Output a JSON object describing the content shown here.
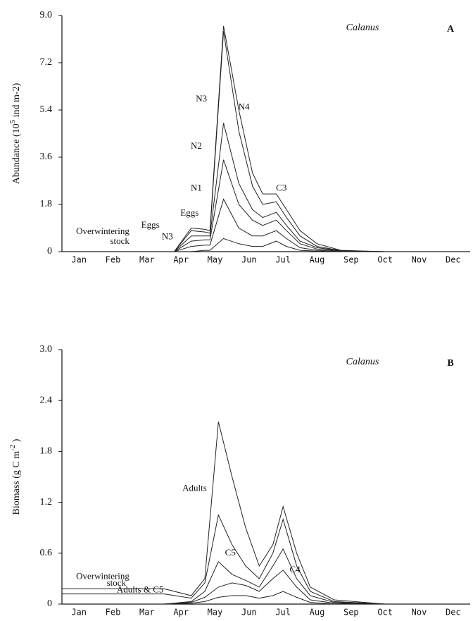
{
  "chart_data": [
    {
      "type": "line",
      "title": "Calanus",
      "panel": "A",
      "ylabel": [
        "Abundance (10",
        "5",
        " ind m-2)"
      ],
      "xlim": [
        0,
        12
      ],
      "ylim": [
        0,
        9
      ],
      "xticks": [
        {
          "value": 0.5,
          "label": "Jan"
        },
        {
          "value": 1.5,
          "label": "Feb"
        },
        {
          "value": 2.5,
          "label": "Mar"
        },
        {
          "value": 3.5,
          "label": "Apr"
        },
        {
          "value": 4.5,
          "label": "May"
        },
        {
          "value": 5.5,
          "label": "Jun"
        },
        {
          "value": 6.5,
          "label": "Jul"
        },
        {
          "value": 7.5,
          "label": "Aug"
        },
        {
          "value": 8.5,
          "label": "Sep"
        },
        {
          "value": 9.5,
          "label": "Oct"
        },
        {
          "value": 10.5,
          "label": "Nov"
        },
        {
          "value": 11.5,
          "label": "Dec"
        }
      ],
      "yticks": [
        0,
        1.8,
        3.6,
        5.4,
        7.2,
        {
          "value": 9,
          "label": "9.0"
        }
      ],
      "x": [
        0,
        3.3,
        3.8,
        4.2,
        4.35,
        4.75,
        5.2,
        5.6,
        5.9,
        6.3,
        6.6,
        7.0,
        7.5,
        8.2,
        9.5,
        12
      ],
      "series": [
        {
          "color": "#222222",
          "values": [
            0,
            0,
            0.9,
            0.85,
            0.8,
            8.6,
            5.4,
            3.0,
            2.2,
            2.2,
            1.6,
            0.8,
            0.3,
            0.05,
            0,
            0
          ]
        },
        {
          "color": "#222222",
          "values": [
            0,
            0,
            0.8,
            0.75,
            0.7,
            8.4,
            4.6,
            2.5,
            1.8,
            1.9,
            1.3,
            0.6,
            0.2,
            0.04,
            0,
            0
          ]
        },
        {
          "color": "#222222",
          "values": [
            0,
            0,
            0.6,
            0.6,
            0.6,
            4.9,
            2.6,
            1.6,
            1.3,
            1.5,
            1.0,
            0.4,
            0.15,
            0.03,
            0,
            0
          ]
        },
        {
          "color": "#222222",
          "values": [
            0,
            0,
            0.4,
            0.45,
            0.45,
            3.5,
            1.8,
            1.2,
            1.0,
            1.2,
            0.8,
            0.3,
            0.1,
            0.02,
            0,
            0
          ]
        },
        {
          "color": "#222222",
          "values": [
            0,
            0,
            0.2,
            0.25,
            0.25,
            2.0,
            0.9,
            0.6,
            0.6,
            0.8,
            0.5,
            0.15,
            0.05,
            0.01,
            0,
            0
          ]
        },
        {
          "color": "#222222",
          "values": [
            0,
            0,
            0,
            0.05,
            0.05,
            0.5,
            0.3,
            0.2,
            0.2,
            0.4,
            0.2,
            0.05,
            0.02,
            0,
            0,
            0
          ]
        }
      ],
      "annotations": [
        {
          "text": "N3",
          "x": 4.1,
          "y": 5.8
        },
        {
          "text": "N4",
          "x": 5.35,
          "y": 5.5
        },
        {
          "text": "N2",
          "x": 3.95,
          "y": 4.0
        },
        {
          "text": "N1",
          "x": 3.95,
          "y": 2.4
        },
        {
          "text": "Eggs",
          "x": 3.75,
          "y": 1.45
        },
        {
          "text": "Eggs",
          "x": 2.6,
          "y": 1.0
        },
        {
          "text": "N3",
          "x": 3.1,
          "y": 0.55
        },
        {
          "text": "C3",
          "x": 6.45,
          "y": 2.4
        },
        {
          "text": "Overwintering",
          "x": 1.2,
          "y": 0.75
        },
        {
          "text": "stock",
          "x": 1.7,
          "y": 0.38
        }
      ]
    },
    {
      "type": "line",
      "title": "Calanus",
      "panel": "B",
      "ylabel": [
        "Biomass (g C m",
        "-2",
        " )"
      ],
      "xlim": [
        0,
        12
      ],
      "ylim": [
        0,
        3
      ],
      "xticks": [
        {
          "value": 0.5,
          "label": "Jan"
        },
        {
          "value": 1.5,
          "label": "Feb"
        },
        {
          "value": 2.5,
          "label": "Mar"
        },
        {
          "value": 3.5,
          "label": "Apr"
        },
        {
          "value": 4.5,
          "label": "May"
        },
        {
          "value": 5.5,
          "label": "Jun"
        },
        {
          "value": 6.5,
          "label": "Jul"
        },
        {
          "value": 7.5,
          "label": "Aug"
        },
        {
          "value": 8.5,
          "label": "Sep"
        },
        {
          "value": 9.5,
          "label": "Oct"
        },
        {
          "value": 10.5,
          "label": "Nov"
        },
        {
          "value": 11.5,
          "label": "Dec"
        }
      ],
      "yticks": [
        0,
        0.6,
        1.2,
        1.8,
        2.4,
        {
          "value": 3,
          "label": "3.0"
        }
      ],
      "x": [
        0,
        3.0,
        3.8,
        4.2,
        4.6,
        5.0,
        5.4,
        5.8,
        6.2,
        6.5,
        6.9,
        7.3,
        8.0,
        9.5,
        12
      ],
      "series": [
        {
          "color": "#222222",
          "values": [
            0.18,
            0.18,
            0.1,
            0.3,
            2.15,
            1.5,
            0.9,
            0.45,
            0.7,
            1.15,
            0.6,
            0.2,
            0.05,
            0,
            0
          ]
        },
        {
          "color": "#222222",
          "values": [
            0.12,
            0.12,
            0.07,
            0.25,
            1.05,
            0.7,
            0.45,
            0.3,
            0.6,
            1.0,
            0.45,
            0.15,
            0.03,
            0,
            0
          ]
        },
        {
          "color": "#222222",
          "values": [
            0,
            0,
            0.03,
            0.15,
            0.5,
            0.35,
            0.28,
            0.2,
            0.45,
            0.65,
            0.3,
            0.1,
            0.02,
            0,
            0
          ]
        },
        {
          "color": "#222222",
          "values": [
            0,
            0,
            0.02,
            0.08,
            0.2,
            0.25,
            0.22,
            0.15,
            0.3,
            0.4,
            0.2,
            0.05,
            0.01,
            0,
            0
          ]
        },
        {
          "color": "#222222",
          "values": [
            0,
            0,
            0.01,
            0.03,
            0.08,
            0.1,
            0.1,
            0.07,
            0.1,
            0.15,
            0.08,
            0.02,
            0,
            0,
            0
          ]
        }
      ],
      "annotations": [
        {
          "text": "Adults",
          "x": 3.9,
          "y": 1.36
        },
        {
          "text": "C5",
          "x": 4.95,
          "y": 0.6
        },
        {
          "text": "C4",
          "x": 6.85,
          "y": 0.4
        },
        {
          "text": "Overwintering",
          "x": 1.2,
          "y": 0.32
        },
        {
          "text": "stock",
          "x": 1.6,
          "y": 0.24
        },
        {
          "text": "Adults & C5",
          "x": 2.3,
          "y": 0.16
        }
      ]
    }
  ]
}
